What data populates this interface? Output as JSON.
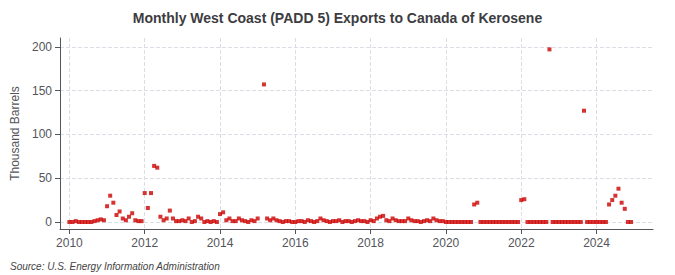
{
  "chart_data": {
    "type": "scatter",
    "title": "Monthly West Coast (PADD 5) Exports to Canada of Kerosene",
    "ylabel": "Thousand Barrels",
    "annotation": "Source: U.S. Energy Information Administration",
    "color": "#cc0000",
    "marker": "square",
    "grid": true,
    "xlim": [
      2009.75,
      2025.5
    ],
    "ylim": [
      -8,
      210
    ],
    "xticks": [
      2010,
      2012,
      2014,
      2016,
      2018,
      2020,
      2022,
      2024
    ],
    "yticks": [
      0,
      50,
      100,
      150,
      200
    ],
    "x": [
      2010.0,
      2010.083,
      2010.167,
      2010.25,
      2010.333,
      2010.417,
      2010.5,
      2010.583,
      2010.667,
      2010.75,
      2010.833,
      2010.917,
      2011.0,
      2011.083,
      2011.167,
      2011.25,
      2011.333,
      2011.417,
      2011.5,
      2011.583,
      2011.667,
      2011.75,
      2011.833,
      2011.917,
      2012.0,
      2012.083,
      2012.167,
      2012.25,
      2012.333,
      2012.417,
      2012.5,
      2012.583,
      2012.667,
      2012.75,
      2012.833,
      2012.917,
      2013.0,
      2013.083,
      2013.167,
      2013.25,
      2013.333,
      2013.417,
      2013.5,
      2013.583,
      2013.667,
      2013.75,
      2013.833,
      2013.917,
      2014.0,
      2014.083,
      2014.167,
      2014.25,
      2014.333,
      2014.417,
      2014.5,
      2014.583,
      2014.667,
      2014.75,
      2014.833,
      2014.917,
      2015.0,
      2015.167,
      2015.25,
      2015.333,
      2015.417,
      2015.5,
      2015.583,
      2015.667,
      2015.75,
      2015.833,
      2015.917,
      2016.0,
      2016.083,
      2016.167,
      2016.25,
      2016.333,
      2016.417,
      2016.5,
      2016.583,
      2016.667,
      2016.75,
      2016.833,
      2016.917,
      2017.0,
      2017.083,
      2017.167,
      2017.25,
      2017.333,
      2017.417,
      2017.5,
      2017.583,
      2017.667,
      2017.75,
      2017.833,
      2017.917,
      2018.0,
      2018.083,
      2018.167,
      2018.25,
      2018.333,
      2018.417,
      2018.5,
      2018.583,
      2018.667,
      2018.75,
      2018.833,
      2018.917,
      2019.0,
      2019.083,
      2019.167,
      2019.25,
      2019.333,
      2019.417,
      2019.5,
      2019.583,
      2019.667,
      2019.75,
      2019.833,
      2019.917,
      2020.0,
      2020.083,
      2020.167,
      2020.25,
      2020.333,
      2020.417,
      2020.5,
      2020.583,
      2020.667,
      2020.75,
      2020.833,
      2020.917,
      2021.0,
      2021.083,
      2021.167,
      2021.25,
      2021.333,
      2021.417,
      2021.5,
      2021.583,
      2021.667,
      2021.75,
      2021.833,
      2021.917,
      2022.0,
      2022.083,
      2022.167,
      2022.25,
      2022.333,
      2022.417,
      2022.5,
      2022.583,
      2022.667,
      2022.75,
      2022.833,
      2022.917,
      2023.0,
      2023.083,
      2023.167,
      2023.25,
      2023.333,
      2023.417,
      2023.5,
      2023.583,
      2023.667,
      2023.75,
      2023.833,
      2023.917,
      2024.0,
      2024.083,
      2024.167,
      2024.25,
      2024.333,
      2024.417,
      2024.5,
      2024.583,
      2024.667,
      2024.75,
      2024.833,
      2024.917
    ],
    "values": [
      0,
      0,
      1,
      0,
      0,
      0,
      0,
      0,
      1,
      2,
      3,
      2,
      18,
      30,
      22,
      8,
      12,
      4,
      2,
      6,
      10,
      2,
      1,
      1,
      33,
      16,
      33,
      64,
      62,
      6,
      2,
      4,
      13,
      4,
      1,
      1,
      2,
      1,
      4,
      0,
      1,
      6,
      4,
      0,
      1,
      0,
      1,
      0,
      9,
      11,
      2,
      4,
      1,
      1,
      4,
      2,
      1,
      0,
      2,
      1,
      4,
      157,
      4,
      2,
      4,
      2,
      1,
      0,
      1,
      1,
      0,
      0,
      1,
      1,
      0,
      2,
      1,
      0,
      1,
      4,
      2,
      1,
      0,
      1,
      1,
      2,
      0,
      1,
      1,
      0,
      1,
      2,
      1,
      1,
      0,
      2,
      1,
      4,
      6,
      7,
      2,
      1,
      4,
      2,
      1,
      1,
      1,
      4,
      2,
      1,
      1,
      0,
      1,
      2,
      1,
      4,
      2,
      1,
      1,
      0,
      0,
      0,
      0,
      0,
      0,
      0,
      0,
      0,
      20,
      22,
      0,
      0,
      0,
      0,
      0,
      0,
      0,
      0,
      0,
      0,
      0,
      0,
      0,
      25,
      26,
      0,
      0,
      0,
      0,
      0,
      0,
      0,
      197,
      0,
      0,
      0,
      0,
      0,
      0,
      0,
      0,
      0,
      0,
      127,
      0,
      0,
      0,
      0,
      0,
      0,
      0,
      20,
      25,
      30,
      38,
      22,
      15,
      0,
      0
    ]
  }
}
